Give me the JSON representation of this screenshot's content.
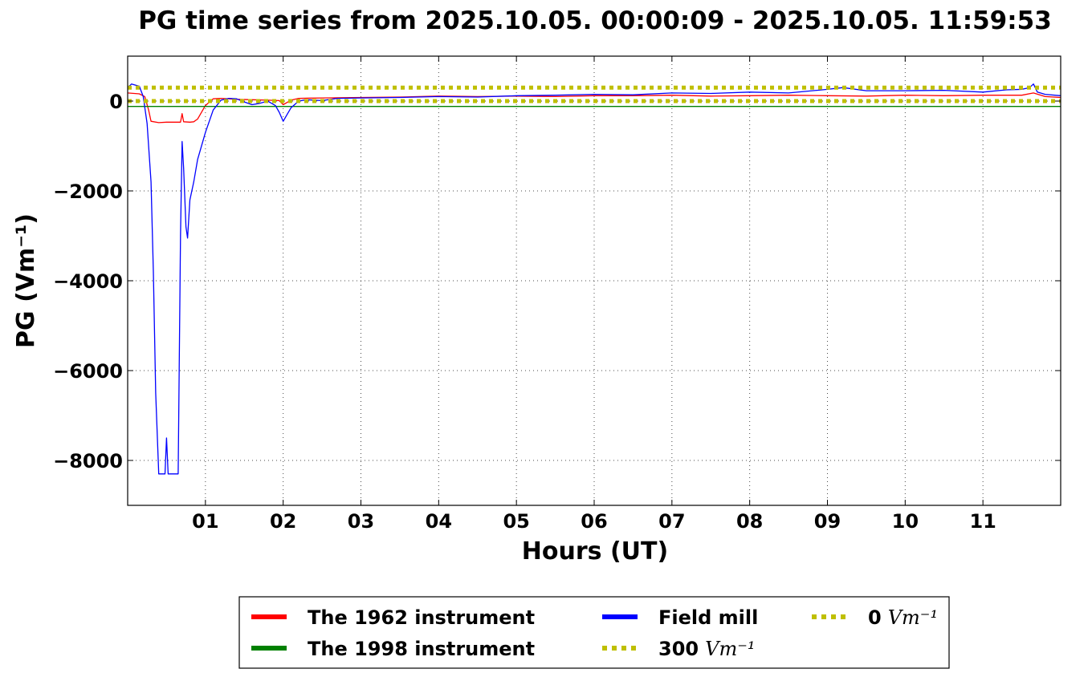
{
  "chart_data": {
    "type": "line",
    "title": "PG time series from 2025.10.05. 00:00:09 - 2025.10.05. 11:59:53",
    "xlabel": "Hours (UT)",
    "ylabel": "PG (Vm⁻¹)",
    "xlim": [
      0,
      12
    ],
    "ylim": [
      -9000,
      1000
    ],
    "grid": true,
    "legend_placement": "below",
    "x_ticks": [
      1,
      2,
      3,
      4,
      5,
      6,
      7,
      8,
      9,
      10,
      11
    ],
    "x_tick_labels": [
      "01",
      "02",
      "03",
      "04",
      "05",
      "06",
      "07",
      "08",
      "09",
      "10",
      "11"
    ],
    "y_ticks": [
      -8000,
      -6000,
      -4000,
      -2000,
      0
    ],
    "y_tick_labels": [
      "−8000",
      "−6000",
      "−4000",
      "−2000",
      "0"
    ],
    "series": [
      {
        "name": "The 1962 instrument",
        "color": "#ff0000",
        "x": [
          0.0,
          0.15,
          0.22,
          0.27,
          0.3,
          0.4,
          0.5,
          0.6,
          0.68,
          0.7,
          0.72,
          0.8,
          0.85,
          0.9,
          1.0,
          1.1,
          1.2,
          1.4,
          1.6,
          1.8,
          1.95,
          2.0,
          2.1,
          2.2,
          2.5,
          3.0,
          3.5,
          4.0,
          4.5,
          5.0,
          5.5,
          6.0,
          6.5,
          7.0,
          7.5,
          8.0,
          8.5,
          9.0,
          9.5,
          10.0,
          10.5,
          11.0,
          11.5,
          11.65,
          11.8,
          12.0
        ],
        "y": [
          180,
          160,
          100,
          -200,
          -450,
          -480,
          -470,
          -470,
          -470,
          -280,
          -460,
          -470,
          -460,
          -400,
          -100,
          50,
          60,
          40,
          30,
          20,
          10,
          -80,
          20,
          60,
          70,
          80,
          90,
          110,
          100,
          110,
          100,
          120,
          120,
          130,
          110,
          120,
          130,
          120,
          110,
          130,
          120,
          130,
          130,
          180,
          100,
          80
        ]
      },
      {
        "name": "The 1998 instrument",
        "color": "#008000",
        "x": [
          0.0,
          12.0
        ],
        "y": [
          -120,
          -120
        ]
      },
      {
        "name": "Field mill",
        "color": "#0000ff",
        "x": [
          0.0,
          0.05,
          0.15,
          0.2,
          0.25,
          0.3,
          0.33,
          0.36,
          0.4,
          0.45,
          0.48,
          0.5,
          0.52,
          0.55,
          0.6,
          0.65,
          0.68,
          0.7,
          0.72,
          0.75,
          0.77,
          0.8,
          0.85,
          0.9,
          1.0,
          1.1,
          1.2,
          1.3,
          1.4,
          1.5,
          1.6,
          1.7,
          1.8,
          1.9,
          1.95,
          2.0,
          2.05,
          2.1,
          2.2,
          2.3,
          2.5,
          2.7,
          3.0,
          3.5,
          4.0,
          4.5,
          5.0,
          5.5,
          6.0,
          6.5,
          7.0,
          7.5,
          8.0,
          8.5,
          9.0,
          9.2,
          9.5,
          10.0,
          10.5,
          11.0,
          11.3,
          11.5,
          11.6,
          11.65,
          11.7,
          11.8,
          12.0
        ],
        "y": [
          300,
          380,
          330,
          100,
          -500,
          -1800,
          -3800,
          -6500,
          -8300,
          -8300,
          -8300,
          -7500,
          -8300,
          -8300,
          -8300,
          -8300,
          -3000,
          -900,
          -1500,
          -2800,
          -3050,
          -2200,
          -1800,
          -1300,
          -700,
          -200,
          20,
          60,
          50,
          -20,
          -80,
          -50,
          0,
          -100,
          -250,
          -450,
          -300,
          -150,
          0,
          30,
          10,
          60,
          70,
          80,
          100,
          90,
          120,
          130,
          150,
          140,
          180,
          170,
          200,
          180,
          260,
          300,
          230,
          230,
          240,
          200,
          250,
          260,
          300,
          380,
          200,
          150,
          120
        ]
      },
      {
        "name": "300 Vm⁻¹",
        "color": "#bfbf00",
        "x": [
          0.0,
          12.0
        ],
        "y": [
          300,
          300
        ]
      },
      {
        "name": "0 Vm⁻¹",
        "color": "#bfbf00",
        "x": [
          0.0,
          12.0
        ],
        "y": [
          0,
          0
        ]
      }
    ],
    "legend": [
      {
        "text": "The 1962 instrument",
        "unit": "",
        "color": "#ff0000",
        "style": "solid"
      },
      {
        "text": "The 1998 instrument",
        "unit": "",
        "color": "#008000",
        "style": "solid"
      },
      {
        "text": "Field mill",
        "unit": "",
        "color": "#0000ff",
        "style": "solid"
      },
      {
        "text": "300",
        "unit": "Vm⁻¹",
        "color": "#bfbf00",
        "style": "dotted"
      },
      {
        "text": "0",
        "unit": "Vm⁻¹",
        "color": "#bfbf00",
        "style": "dotted"
      }
    ]
  }
}
